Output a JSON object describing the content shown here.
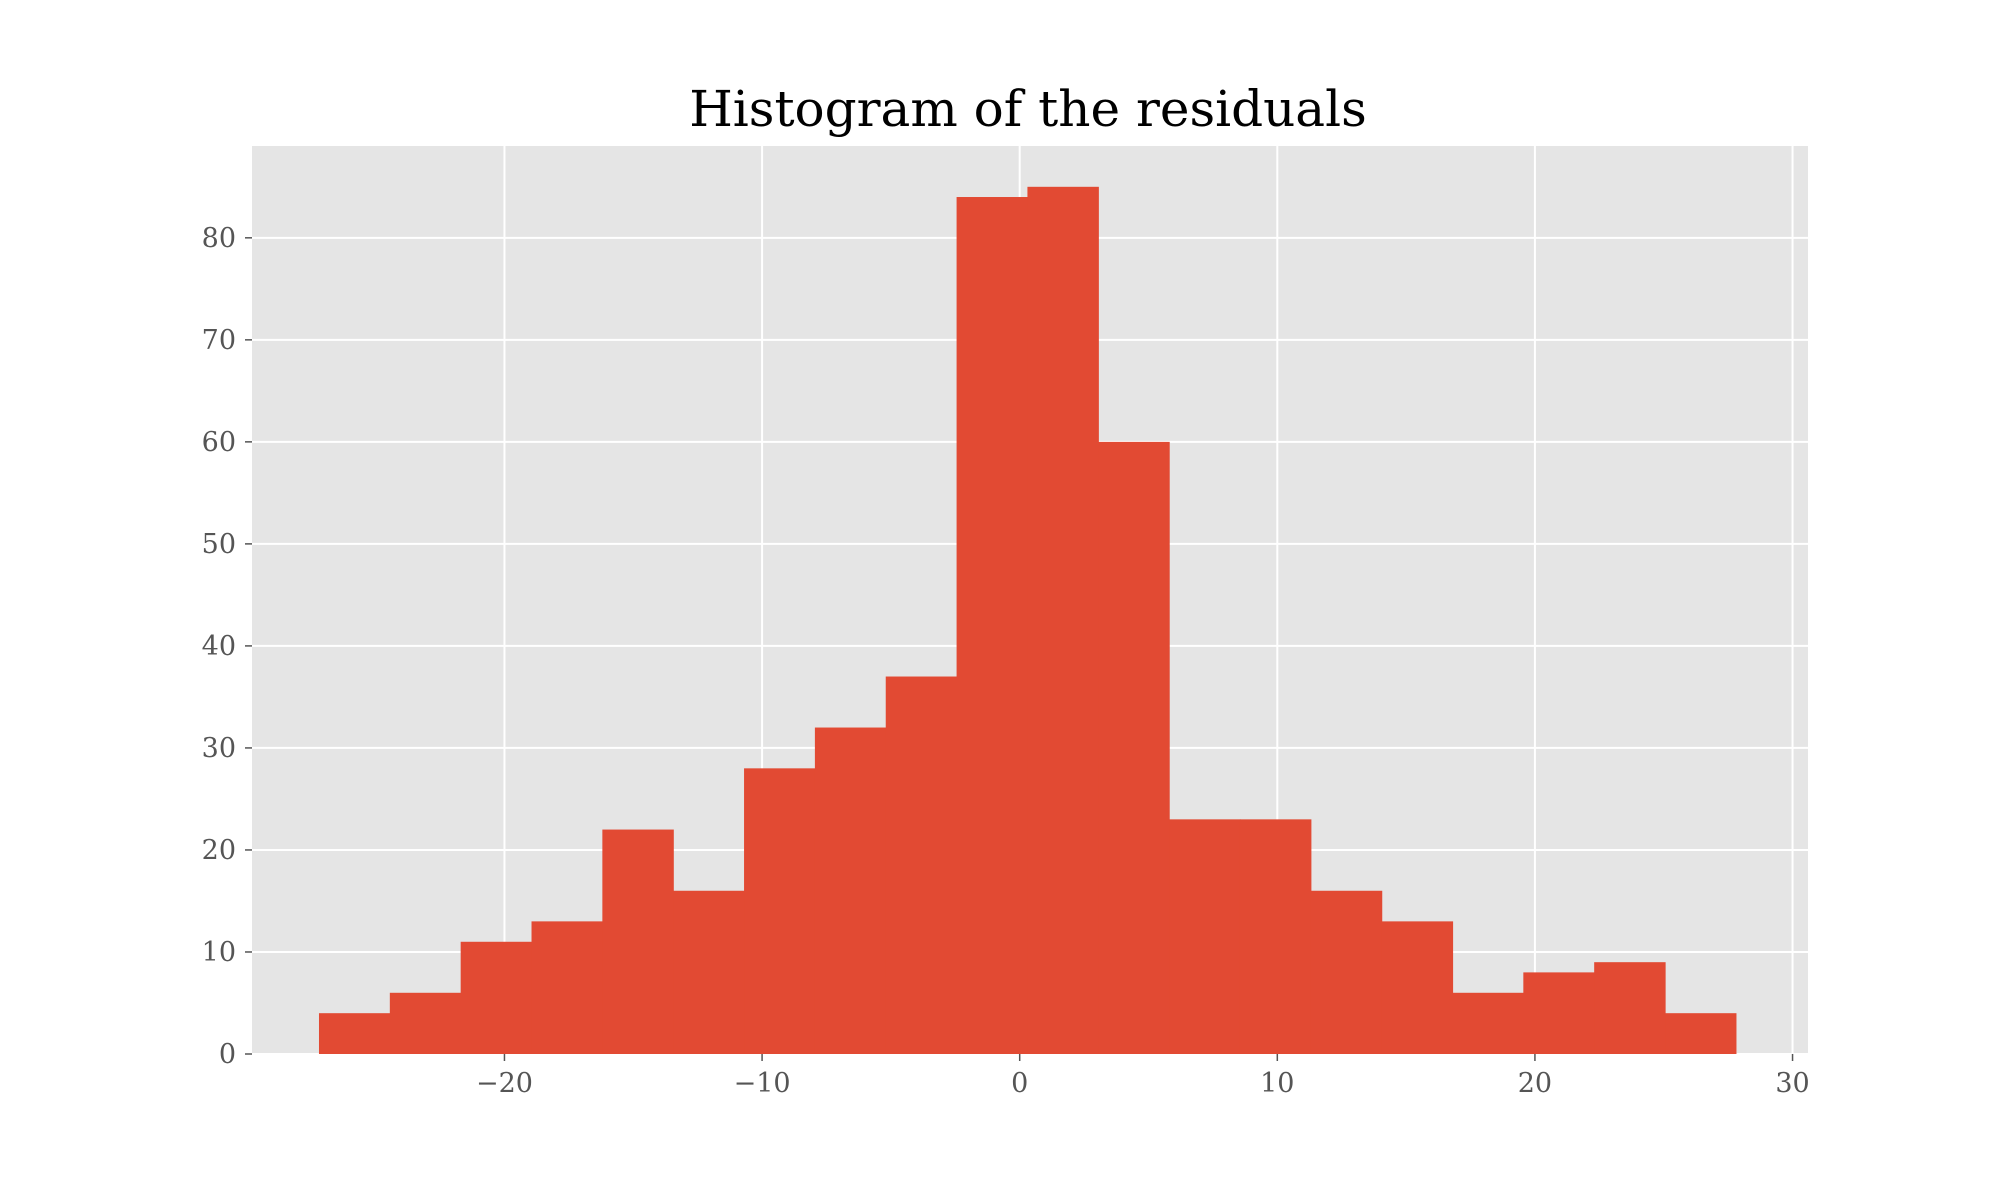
{
  "chart_data": {
    "type": "bar",
    "title": "Histogram of the residuals",
    "xlabel": "",
    "ylabel": "",
    "xlim": [
      -29.8,
      30.6
    ],
    "ylim": [
      0,
      89
    ],
    "x_ticks": [
      -20,
      -10,
      0,
      10,
      20,
      30
    ],
    "x_tick_labels": [
      "−20",
      "−10",
      "0",
      "10",
      "20",
      "30"
    ],
    "y_ticks": [
      0,
      10,
      20,
      30,
      40,
      50,
      60,
      70,
      80
    ],
    "y_tick_labels": [
      "0",
      "10",
      "20",
      "30",
      "40",
      "50",
      "60",
      "70",
      "80"
    ],
    "bin_edges": [
      -27.2,
      -24.45,
      -21.7,
      -18.95,
      -16.2,
      -13.45,
      -10.7,
      -7.95,
      -5.2,
      -2.45,
      0.3,
      3.05,
      5.8,
      8.55,
      11.3,
      14.05,
      16.8,
      19.55,
      22.3,
      25.05,
      27.8
    ],
    "values": [
      4,
      6,
      11,
      13,
      22,
      16,
      28,
      32,
      37,
      84,
      85,
      60,
      23,
      23,
      16,
      13,
      6,
      8,
      9,
      4
    ],
    "grid": true,
    "bar_color": "#E24A33",
    "background_color": "#E5E5E5",
    "grid_color": "#FFFFFF"
  }
}
